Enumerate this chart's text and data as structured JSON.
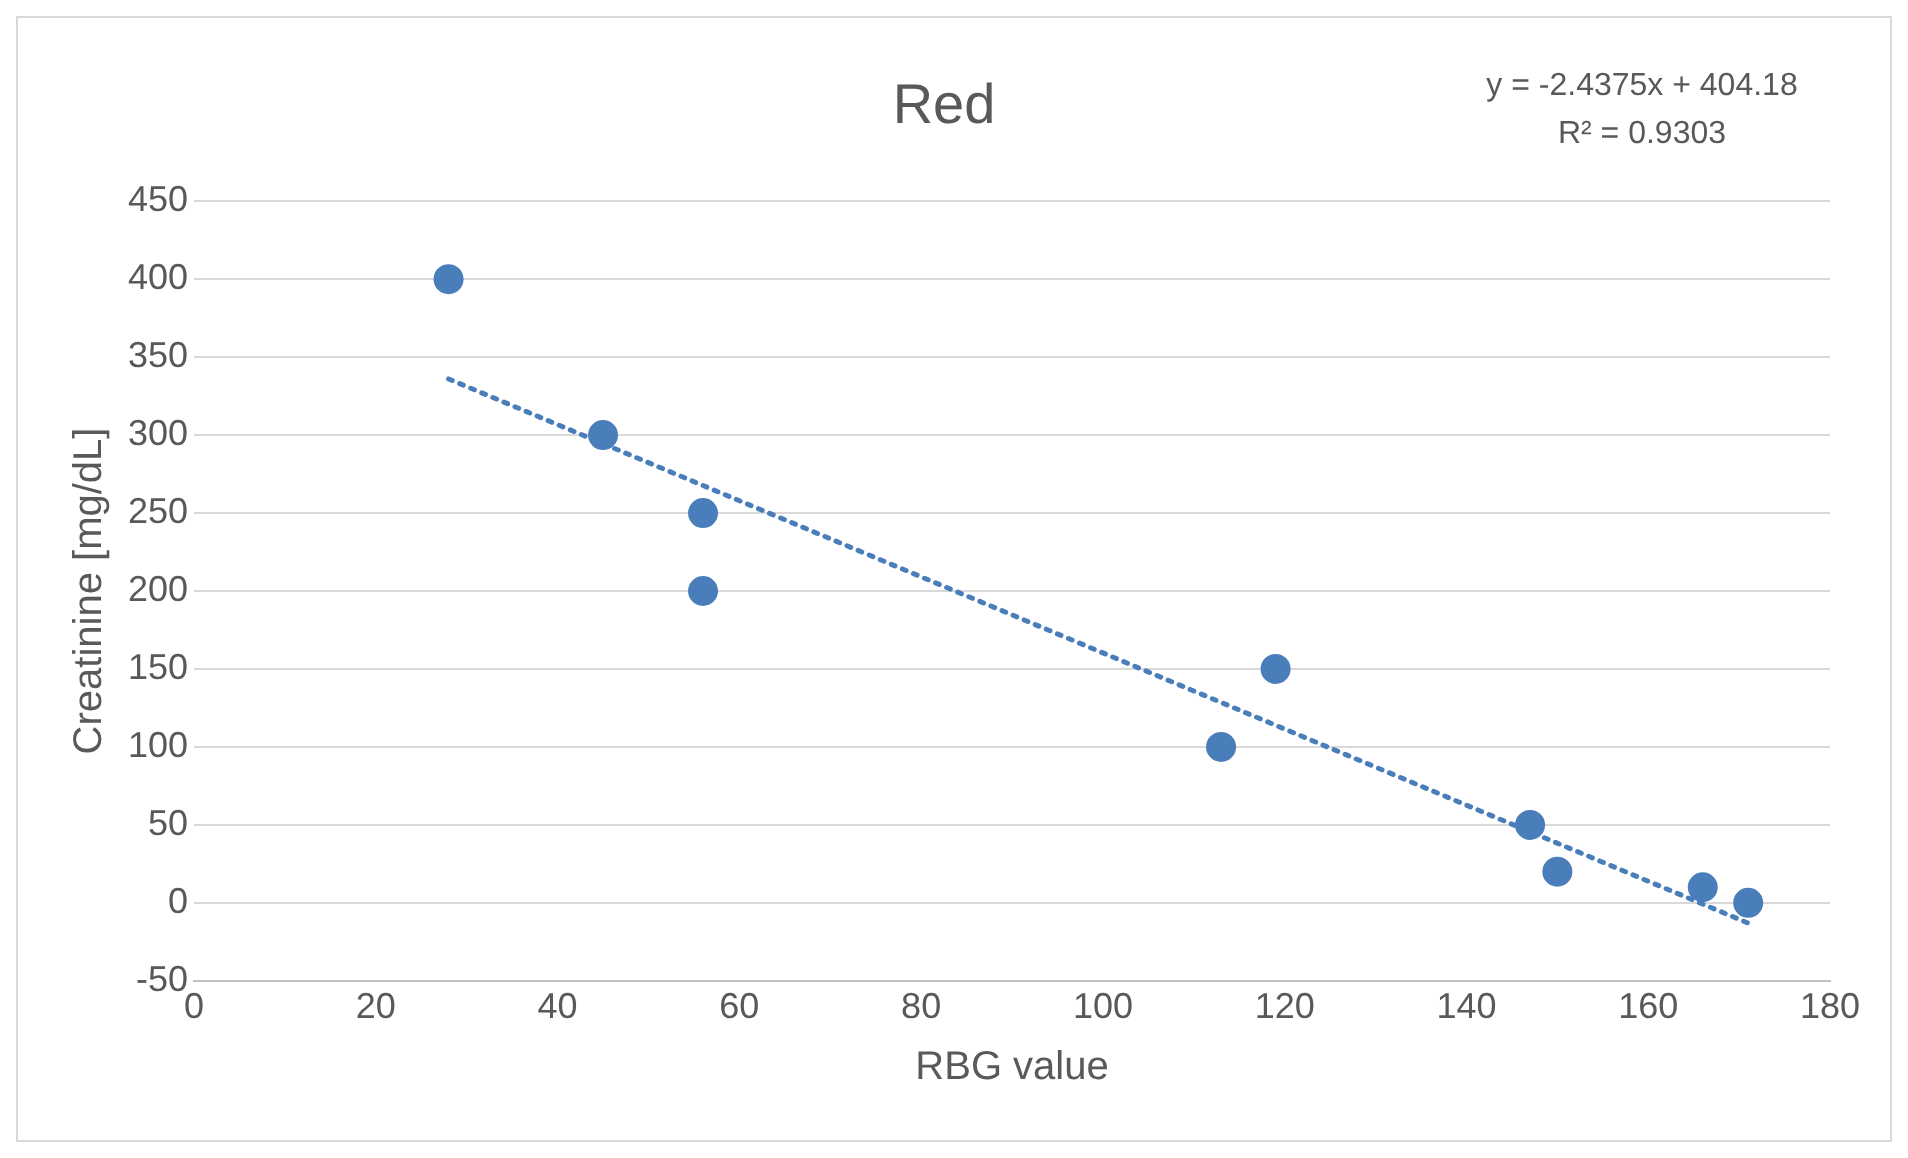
{
  "chart_data": {
    "type": "scatter",
    "title": "Red",
    "xlabel": "RBG value",
    "ylabel": "Creatinine [mg/dL]",
    "annotations": [
      "y = -2.4375x + 404.18",
      "R² = 0.9303"
    ],
    "xlim": [
      0,
      180
    ],
    "xticks": [
      0,
      20,
      40,
      60,
      80,
      100,
      120,
      140,
      160,
      180
    ],
    "ylim": [
      -50,
      450
    ],
    "yticks": [
      -50,
      0,
      50,
      100,
      150,
      200,
      250,
      300,
      350,
      400,
      450
    ],
    "grid": "y",
    "legend": false,
    "marker": "circle",
    "series": [
      {
        "color": "#4a7ebb",
        "x": [
          28,
          45,
          56,
          56,
          113,
          119,
          147,
          150,
          166,
          171
        ],
        "values": [
          400,
          300,
          250,
          200,
          100,
          150,
          50,
          20,
          10,
          0
        ]
      },
      {
        "type": "line",
        "color": "#4a7ebb",
        "line_style": "dotted",
        "marker": "none",
        "x": [
          28,
          171
        ],
        "values": [
          336,
          -13
        ]
      }
    ]
  }
}
